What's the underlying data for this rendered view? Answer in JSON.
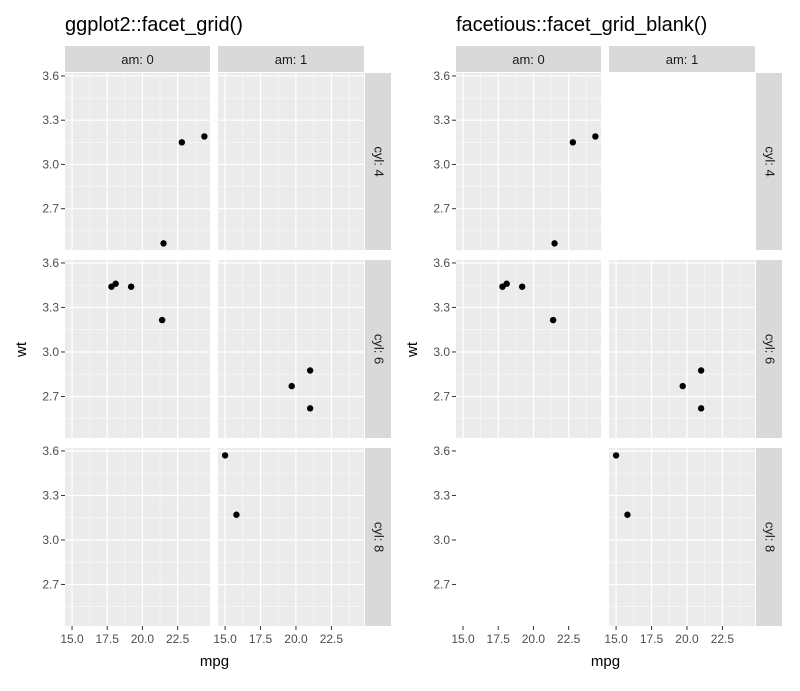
{
  "chart_data": [
    {
      "type": "scatter",
      "title": "ggplot2::facet_grid()",
      "xlabel": "mpg",
      "ylabel": "wt",
      "col_facet_labels": [
        "am: 0",
        "am: 1"
      ],
      "row_facet_labels": [
        "cyl: 4",
        "cyl: 6",
        "cyl: 8"
      ],
      "xlim": [
        14.5,
        24.8
      ],
      "ylim": [
        2.42,
        3.62
      ],
      "x_ticks": [
        "15.0",
        "17.5",
        "20.0",
        "22.5"
      ],
      "y_ticks": [
        "2.7",
        "3.0",
        "3.3",
        "3.6"
      ],
      "grid": true,
      "points": [
        {
          "cyl": "4",
          "am": "0",
          "x": 21.5,
          "y": 2.465
        },
        {
          "cyl": "4",
          "am": "0",
          "x": 22.8,
          "y": 3.15
        },
        {
          "cyl": "4",
          "am": "0",
          "x": 24.4,
          "y": 3.19
        },
        {
          "cyl": "6",
          "am": "0",
          "x": 17.8,
          "y": 3.44
        },
        {
          "cyl": "6",
          "am": "0",
          "x": 18.1,
          "y": 3.46
        },
        {
          "cyl": "6",
          "am": "0",
          "x": 19.2,
          "y": 3.44
        },
        {
          "cyl": "6",
          "am": "0",
          "x": 21.4,
          "y": 3.215
        },
        {
          "cyl": "6",
          "am": "1",
          "x": 19.7,
          "y": 2.77
        },
        {
          "cyl": "6",
          "am": "1",
          "x": 21.0,
          "y": 2.875
        },
        {
          "cyl": "6",
          "am": "1",
          "x": 21.0,
          "y": 2.62
        },
        {
          "cyl": "8",
          "am": "1",
          "x": 15.0,
          "y": 3.57
        },
        {
          "cyl": "8",
          "am": "1",
          "x": 15.8,
          "y": 3.17
        }
      ]
    },
    {
      "type": "scatter",
      "title": "facetious::facet_grid_blank()",
      "xlabel": "mpg",
      "ylabel": "wt",
      "col_facet_labels": [
        "am: 0",
        "am: 1"
      ],
      "row_facet_labels": [
        "cyl: 4",
        "cyl: 6",
        "cyl: 8"
      ],
      "xlim": [
        14.5,
        24.8
      ],
      "ylim": [
        2.42,
        3.62
      ],
      "x_ticks": [
        "15.0",
        "17.5",
        "20.0",
        "22.5"
      ],
      "y_ticks": [
        "2.7",
        "3.0",
        "3.3",
        "3.6"
      ],
      "grid": true,
      "blank_empty_panels": true,
      "points": [
        {
          "cyl": "4",
          "am": "0",
          "x": 21.5,
          "y": 2.465
        },
        {
          "cyl": "4",
          "am": "0",
          "x": 22.8,
          "y": 3.15
        },
        {
          "cyl": "4",
          "am": "0",
          "x": 24.4,
          "y": 3.19
        },
        {
          "cyl": "6",
          "am": "0",
          "x": 17.8,
          "y": 3.44
        },
        {
          "cyl": "6",
          "am": "0",
          "x": 18.1,
          "y": 3.46
        },
        {
          "cyl": "6",
          "am": "0",
          "x": 19.2,
          "y": 3.44
        },
        {
          "cyl": "6",
          "am": "0",
          "x": 21.4,
          "y": 3.215
        },
        {
          "cyl": "6",
          "am": "1",
          "x": 19.7,
          "y": 2.77
        },
        {
          "cyl": "6",
          "am": "1",
          "x": 21.0,
          "y": 2.875
        },
        {
          "cyl": "6",
          "am": "1",
          "x": 21.0,
          "y": 2.62
        },
        {
          "cyl": "8",
          "am": "1",
          "x": 15.0,
          "y": 3.57
        },
        {
          "cyl": "8",
          "am": "1",
          "x": 15.8,
          "y": 3.17
        }
      ]
    }
  ]
}
